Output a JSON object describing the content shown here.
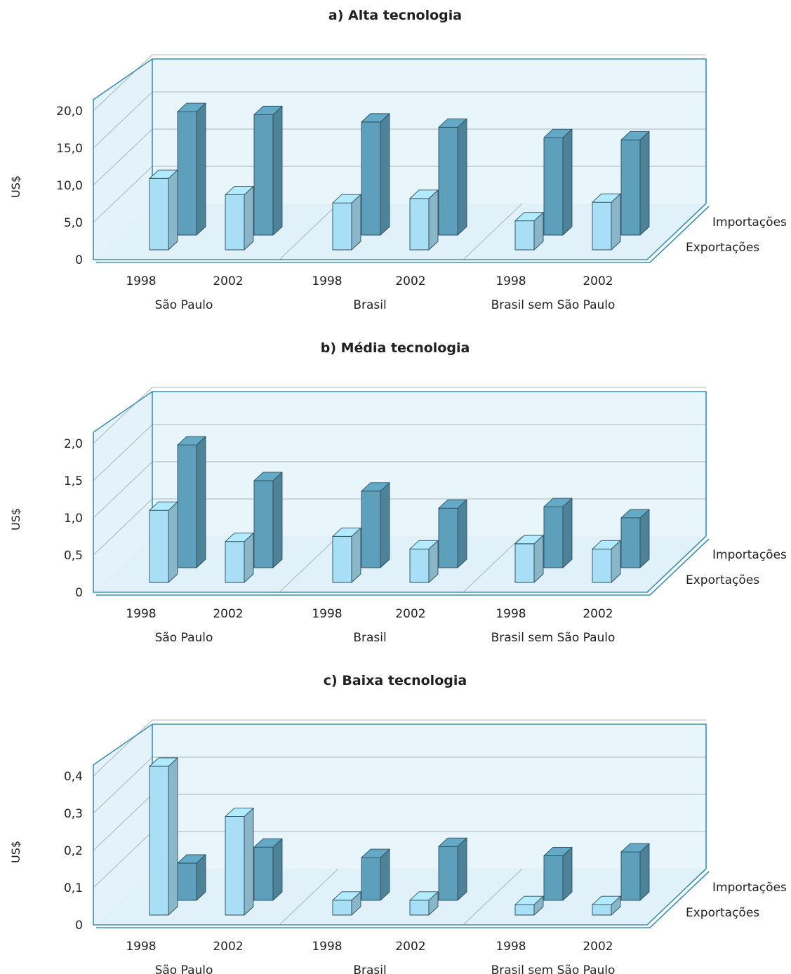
{
  "chart_data": [
    {
      "type": "bar",
      "title": "a) Alta tecnologia",
      "ylabel": "US$",
      "yticks": [
        "0",
        "5,0",
        "10,0",
        "15,0",
        "20,0"
      ],
      "ylim": [
        0,
        20
      ],
      "categories": [
        "1998",
        "2002",
        "1998",
        "2002",
        "1998",
        "2002"
      ],
      "groups": [
        "São Paulo",
        "Brasil",
        "Brasil sem São Paulo"
      ],
      "depth_labels": [
        "Importações",
        "Exportações"
      ],
      "series": [
        {
          "name": "Exportações",
          "values": [
            9.6,
            7.4,
            6.3,
            6.9,
            3.9,
            6.4
          ]
        },
        {
          "name": "Importações",
          "values": [
            16.6,
            16.2,
            15.2,
            14.5,
            13.1,
            12.8
          ]
        }
      ],
      "colors": {
        "Exportações": "#a8def6",
        "Importações": "#5e9fbb"
      }
    },
    {
      "type": "bar",
      "title": "b) Média tecnologia",
      "ylabel": "US$",
      "yticks": [
        "0",
        "0,5",
        "1,0",
        "1,5",
        "2,0"
      ],
      "ylim": [
        0,
        2
      ],
      "categories": [
        "1998",
        "2002",
        "1998",
        "2002",
        "1998",
        "2002"
      ],
      "groups": [
        "São Paulo",
        "Brasil",
        "Brasil sem São Paulo"
      ],
      "depth_labels": [
        "Importações",
        "Exportações"
      ],
      "series": [
        {
          "name": "Exportações",
          "values": [
            0.97,
            0.55,
            0.62,
            0.45,
            0.52,
            0.45
          ]
        },
        {
          "name": "Importações",
          "values": [
            1.65,
            1.17,
            1.03,
            0.8,
            0.82,
            0.67
          ]
        }
      ],
      "colors": {
        "Exportações": "#a8def6",
        "Importações": "#5e9fbb"
      }
    },
    {
      "type": "bar",
      "title": "c) Baixa tecnologia",
      "ylabel": "US$",
      "yticks": [
        "0",
        "0,1",
        "0,2",
        "0,3",
        "0,4"
      ],
      "ylim": [
        0,
        0.4
      ],
      "categories": [
        "1998",
        "2002",
        "1998",
        "2002",
        "1998",
        "2002"
      ],
      "groups": [
        "São Paulo",
        "Brasil",
        "Brasil sem São Paulo"
      ],
      "depth_labels": [
        "Importações",
        "Exportações"
      ],
      "series": [
        {
          "name": "Exportações",
          "values": [
            0.4,
            0.265,
            0.04,
            0.04,
            0.028,
            0.028
          ]
        },
        {
          "name": "Importações",
          "values": [
            0.1,
            0.143,
            0.115,
            0.145,
            0.12,
            0.13
          ]
        }
      ],
      "colors": {
        "Exportações": "#a8def6",
        "Importações": "#5e9fbb"
      }
    }
  ]
}
